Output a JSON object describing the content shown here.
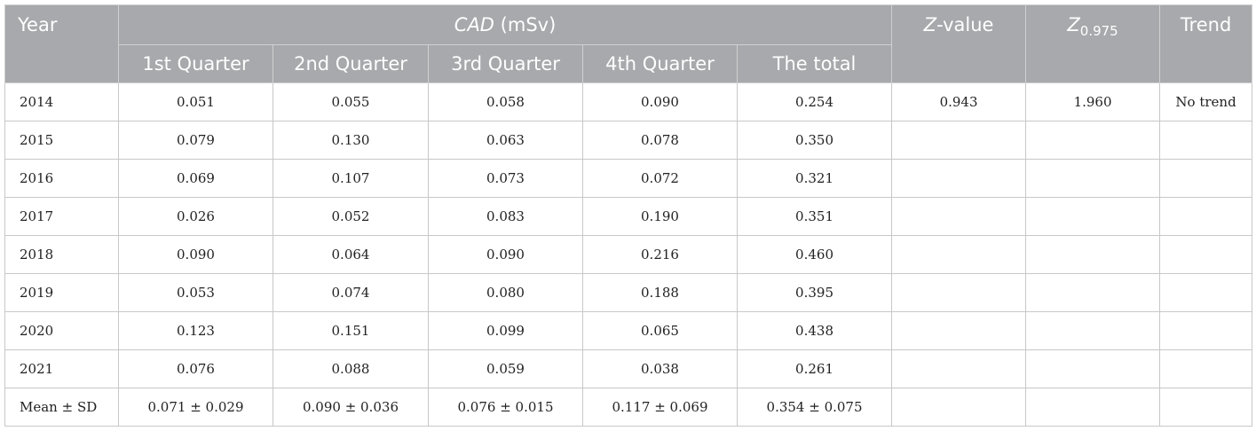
{
  "header": {
    "year": "Year",
    "group": {
      "italic": "CAD",
      "rest": "(mSv)"
    },
    "columns": [
      "1st Quarter",
      "2nd Quarter",
      "3rd Quarter",
      "4th Quarter",
      "The total"
    ],
    "z_value": {
      "italic": "Z",
      "rest": "-value"
    },
    "z_crit": {
      "italic": "Z",
      "sub": "0.975"
    },
    "trend": "Trend"
  },
  "rows": [
    [
      "2014",
      "0.051",
      "0.055",
      "0.058",
      "0.090",
      "0.254"
    ],
    [
      "2015",
      "0.079",
      "0.130",
      "0.063",
      "0.078",
      "0.350"
    ],
    [
      "2016",
      "0.069",
      "0.107",
      "0.073",
      "0.072",
      "0.321"
    ],
    [
      "2017",
      "0.026",
      "0.052",
      "0.083",
      "0.190",
      "0.351"
    ],
    [
      "2018",
      "0.090",
      "0.064",
      "0.090",
      "0.216",
      "0.460"
    ],
    [
      "2019",
      "0.053",
      "0.074",
      "0.080",
      "0.188",
      "0.395"
    ],
    [
      "2020",
      "0.123",
      "0.151",
      "0.099",
      "0.065",
      "0.438"
    ],
    [
      "2021",
      "0.076",
      "0.088",
      "0.059",
      "0.038",
      "0.261"
    ],
    [
      "Mean ± SD",
      "0.071 ± 0.029",
      "0.090 ± 0.036",
      "0.076 ± 0.015",
      "0.117 ± 0.069",
      "0.354 ± 0.075"
    ]
  ],
  "test": {
    "z_value": "0.943",
    "z_crit": "1.960",
    "trend": "No trend"
  }
}
